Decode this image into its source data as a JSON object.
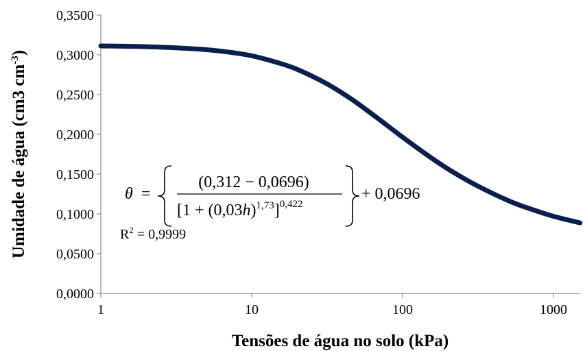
{
  "chart_data": {
    "type": "line",
    "xscale": "log",
    "xlim": [
      1,
      1500
    ],
    "ylim": [
      0,
      0.35
    ],
    "xlabel": "Tensões de água no solo (kPa)",
    "ylabel_main": "Umidade de água (cm3 cm",
    "ylabel_sup": "-3",
    "ylabel_end": ")",
    "x_ticks": [
      1,
      10,
      100,
      1000
    ],
    "x_tick_labels": [
      "1",
      "10",
      "100",
      "1000"
    ],
    "y_ticks": [
      0,
      0.05,
      0.1,
      0.15,
      0.2,
      0.25,
      0.3,
      0.35
    ],
    "y_tick_labels": [
      "0,0000",
      "0,0500",
      "0,1000",
      "0,1500",
      "0,2000",
      "0,2500",
      "0,3000",
      "0,3500"
    ],
    "grid": false,
    "series": [
      {
        "color": "#0b1f4f",
        "x": [
          1,
          1.5,
          2,
          3,
          5,
          7,
          10,
          15,
          20,
          30,
          40,
          50,
          70,
          100,
          150,
          200,
          300,
          500,
          700,
          1000,
          1500
        ],
        "y": [
          0.3112,
          0.3108,
          0.3102,
          0.309,
          0.3065,
          0.3035,
          0.2988,
          0.29,
          0.2818,
          0.2658,
          0.2517,
          0.2393,
          0.2188,
          0.1965,
          0.1723,
          0.1565,
          0.1371,
          0.1168,
          0.1064,
          0.097,
          0.0887
        ]
      }
    ],
    "annotation": {
      "theta": "θ",
      "equals": "=",
      "numerator": "(0,312 − 0,0696)",
      "den_open": "[1 + (0,03",
      "den_h": "h",
      "den_close": ")",
      "den_exp1": "1,73",
      "den_bracket": "]",
      "den_exp2": "0,422",
      "tail": "+ 0,0696",
      "r2_label": "R",
      "r2_sup": "2",
      "r2_value": " = 0,9999"
    }
  }
}
